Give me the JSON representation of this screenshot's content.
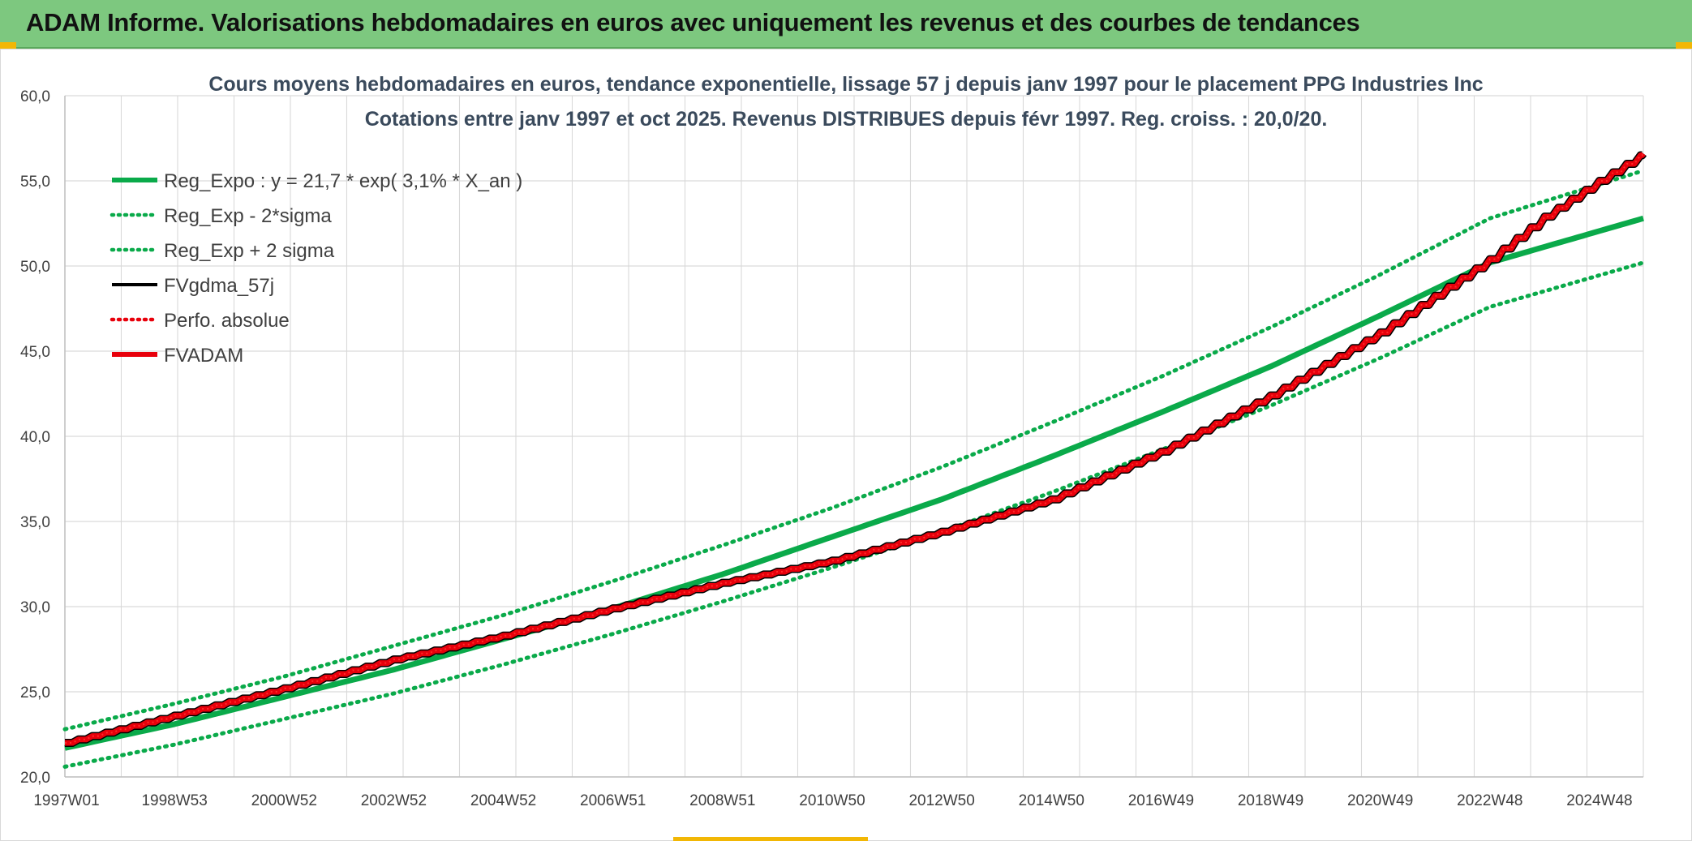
{
  "header": {
    "title": "ADAM Informe. Valorisations hebdomadaires en euros avec uniquement les revenus et des courbes de tendances"
  },
  "colors": {
    "header_bg": "#7dc87f",
    "reg_green": "#0aaa4a",
    "red": "#e8000b",
    "black": "#000000",
    "grid": "#d9d9d9"
  },
  "chart_data": {
    "type": "line",
    "title_line1": "Cours moyens hebdomadaires en euros, tendance exponentielle, lissage 57 j depuis janv 1997 pour le placement PPG Industries Inc",
    "title_line2": "Cotations entre janv 1997 et oct 2025. Revenus DISTRIBUES depuis févr 1997. Reg. croiss. : 20,0/20.",
    "x_tick_labels": [
      "1997W01",
      "1998W53",
      "2000W52",
      "2002W52",
      "2004W52",
      "2006W51",
      "2008W51",
      "2010W50",
      "2012W50",
      "2014W50",
      "2016W49",
      "2018W49",
      "2020W49",
      "2022W48",
      "2024W48"
    ],
    "x_range_years": [
      1997.0,
      2025.8
    ],
    "y_tick_labels": [
      "20,0",
      "25,0",
      "30,0",
      "35,0",
      "40,0",
      "45,0",
      "50,0",
      "55,0",
      "60,0"
    ],
    "ylim": [
      20,
      60
    ],
    "grid": true,
    "legend_position": "top-left",
    "legend": [
      {
        "label": "Reg_Expo : y = 21,7 * exp( 3,1% *  X_an )",
        "style": "solid-thick",
        "color": "#0aaa4a"
      },
      {
        "label": "Reg_Exp - 2*sigma",
        "style": "dotted",
        "color": "#0aaa4a"
      },
      {
        "label": "Reg_Exp + 2 sigma",
        "style": "dotted",
        "color": "#0aaa4a"
      },
      {
        "label": "FVgdma_57j",
        "style": "solid",
        "color": "#000000"
      },
      {
        "label": "Perfo. absolue",
        "style": "dotted",
        "color": "#e8000b"
      },
      {
        "label": "FVADAM",
        "style": "solid-thick",
        "color": "#e8000b"
      }
    ],
    "series": [
      {
        "name": "Reg_Expo",
        "x": [
          1997,
          1999,
          2001,
          2003,
          2005,
          2007,
          2009,
          2011,
          2013,
          2015,
          2017,
          2019,
          2021,
          2023,
          2025.8
        ],
        "values": [
          21.7,
          23.1,
          24.7,
          26.3,
          28.1,
          29.9,
          31.9,
          34.1,
          36.3,
          38.8,
          41.4,
          44.1,
          47.1,
          50.2,
          52.8
        ]
      },
      {
        "name": "Reg_Exp - 2*sigma",
        "x": [
          1997,
          1999,
          2001,
          2003,
          2005,
          2007,
          2009,
          2011,
          2013,
          2015,
          2017,
          2019,
          2021,
          2023,
          2025.8
        ],
        "values": [
          20.6,
          21.9,
          23.4,
          24.9,
          26.6,
          28.4,
          30.3,
          32.3,
          34.4,
          36.7,
          39.2,
          41.8,
          44.6,
          47.6,
          50.2
        ]
      },
      {
        "name": "Reg_Exp + 2 sigma",
        "x": [
          1997,
          1999,
          2001,
          2003,
          2005,
          2007,
          2009,
          2011,
          2013,
          2015,
          2017,
          2019,
          2021,
          2023,
          2025.8
        ],
        "values": [
          22.8,
          24.3,
          25.9,
          27.7,
          29.5,
          31.5,
          33.6,
          35.8,
          38.2,
          40.8,
          43.5,
          46.4,
          49.5,
          52.8,
          55.6
        ]
      },
      {
        "name": "FVgdma_57j",
        "x": [
          1997,
          1999,
          2001,
          2003,
          2005,
          2007,
          2009,
          2011,
          2013,
          2015,
          2017,
          2019,
          2021,
          2023,
          2024,
          2025,
          2025.8
        ],
        "values": [
          22.0,
          23.6,
          25.2,
          26.9,
          28.3,
          29.9,
          31.4,
          32.7,
          34.4,
          36.3,
          39.1,
          42.4,
          46.1,
          50.4,
          52.9,
          55.0,
          56.6
        ]
      },
      {
        "name": "Perfo. absolue",
        "x": [
          1997,
          1999,
          2001,
          2003,
          2005,
          2007,
          2009,
          2011,
          2013,
          2015,
          2017,
          2019,
          2021,
          2023,
          2024,
          2025,
          2025.8
        ],
        "values": [
          22.0,
          23.6,
          25.2,
          26.9,
          28.3,
          29.9,
          31.4,
          32.7,
          34.4,
          36.3,
          39.1,
          42.4,
          46.1,
          50.4,
          52.9,
          55.0,
          56.6
        ]
      },
      {
        "name": "FVADAM",
        "x": [
          1997,
          1999,
          2001,
          2003,
          2005,
          2007,
          2009,
          2011,
          2013,
          2015,
          2017,
          2019,
          2021,
          2023,
          2024,
          2025,
          2025.8
        ],
        "values": [
          22.0,
          23.6,
          25.2,
          26.9,
          28.3,
          29.9,
          31.4,
          32.7,
          34.4,
          36.3,
          39.1,
          42.4,
          46.1,
          50.4,
          52.9,
          55.0,
          56.6
        ]
      }
    ]
  }
}
